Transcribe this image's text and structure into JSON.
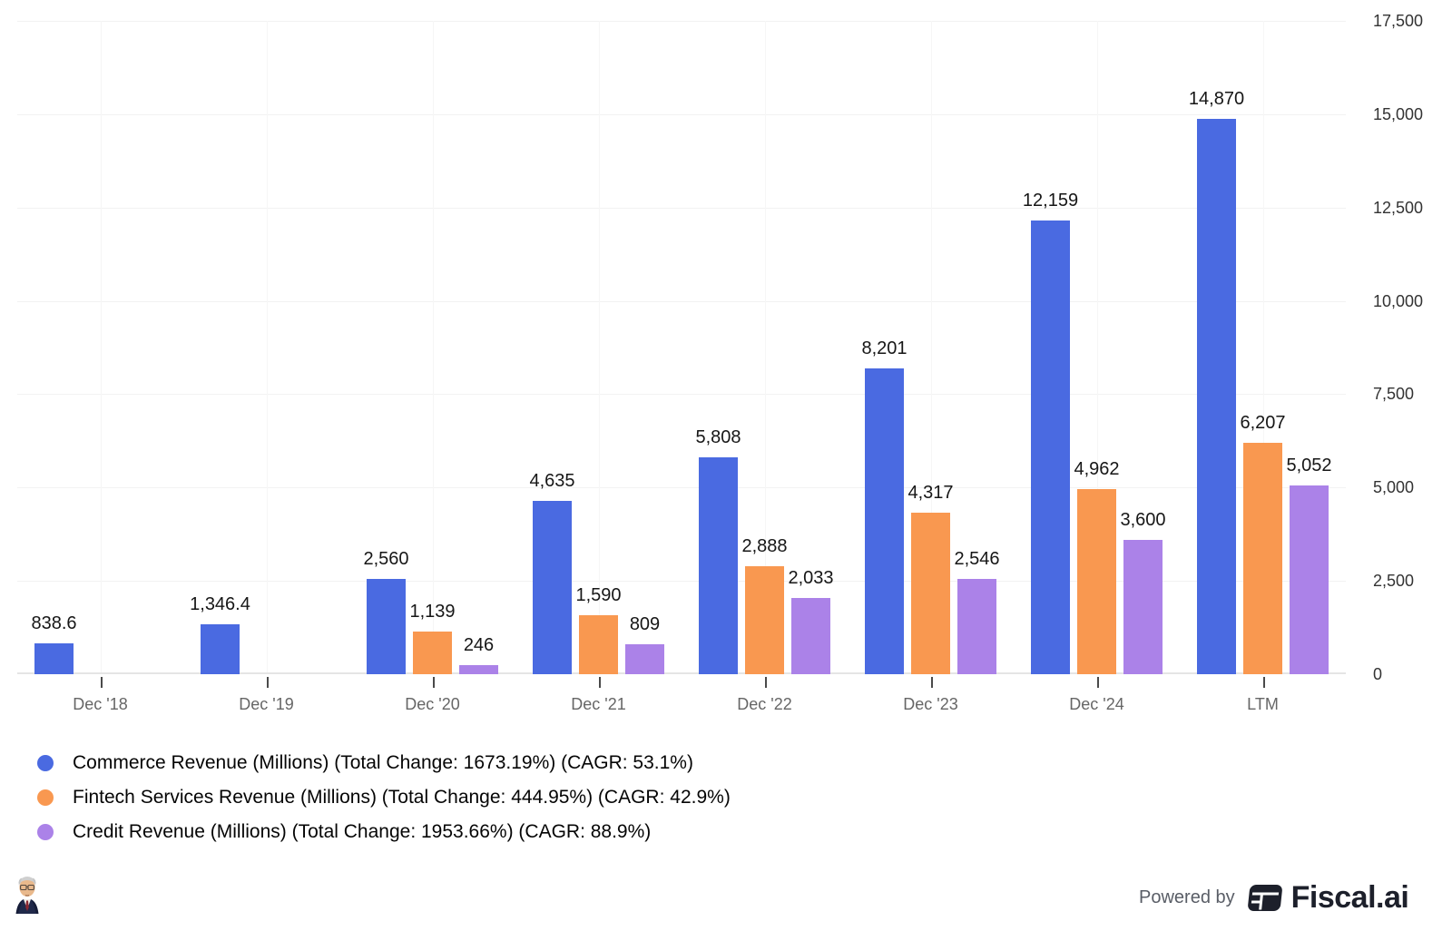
{
  "chart_data": {
    "type": "bar",
    "title": "",
    "xlabel": "",
    "ylabel": "",
    "categories": [
      "Dec '18",
      "Dec '19",
      "Dec '20",
      "Dec '21",
      "Dec '22",
      "Dec '23",
      "Dec '24",
      "LTM"
    ],
    "series": [
      {
        "name": "Commerce Revenue (Millions) (Total Change: 1673.19%) (CAGR: 53.1%)",
        "color": "#4a6ae1",
        "values": [
          838.6,
          1346.4,
          2560,
          4635,
          5808,
          8201,
          12159,
          14870
        ],
        "labels": [
          "838.6",
          "1,346.4",
          "2,560",
          "4,635",
          "5,808",
          "8,201",
          "12,159",
          "14,870"
        ]
      },
      {
        "name": "Fintech Services Revenue (Millions) (Total Change: 444.95%) (CAGR: 42.9%)",
        "color": "#f99850",
        "values": [
          null,
          null,
          1139,
          1590,
          2888,
          4317,
          4962,
          6207
        ],
        "labels": [
          null,
          null,
          "1,139",
          "1,590",
          "2,888",
          "4,317",
          "4,962",
          "6,207"
        ]
      },
      {
        "name": "Credit Revenue (Millions) (Total Change: 1953.66%) (CAGR: 88.9%)",
        "color": "#ab82e8",
        "values": [
          null,
          null,
          246,
          809,
          2033,
          2546,
          3600,
          5052
        ],
        "labels": [
          null,
          null,
          "246",
          "809",
          "2,033",
          "2,546",
          "3,600",
          "5,052"
        ]
      }
    ],
    "ylim": [
      0,
      17500
    ],
    "yticks": [
      {
        "v": 0,
        "label": "0"
      },
      {
        "v": 2500,
        "label": "2,500"
      },
      {
        "v": 5000,
        "label": "5,000"
      },
      {
        "v": 7500,
        "label": "7,500"
      },
      {
        "v": 10000,
        "label": "10,000"
      },
      {
        "v": 12500,
        "label": "12,500"
      },
      {
        "v": 15000,
        "label": "15,000"
      },
      {
        "v": 17500,
        "label": "17,500"
      }
    ],
    "grid": true,
    "legend_position": "bottom-left",
    "y_axis_side": "right"
  },
  "footer": {
    "powered_by": "Powered by",
    "brand": "Fiscal.ai"
  },
  "colors": {
    "grid_h": "#f2f2f2",
    "grid_v": "#f6f6f6",
    "axis_line": "#e5e5e5",
    "tick": "#4a4a4a",
    "x_label": "#666666",
    "y_label": "#333333",
    "value_label": "#161616",
    "brand_dark": "#1d202b",
    "powered_by_gray": "#595d66"
  }
}
